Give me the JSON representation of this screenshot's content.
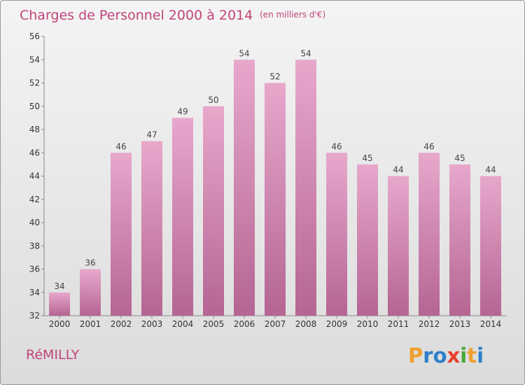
{
  "chart_data": {
    "type": "bar",
    "title": "Charges de Personnel 2000 à 2014",
    "subtitle": "(en milliers d'€)",
    "categories": [
      "2000",
      "2001",
      "2002",
      "2003",
      "2004",
      "2005",
      "2006",
      "2007",
      "2008",
      "2009",
      "2010",
      "2011",
      "2012",
      "2013",
      "2014"
    ],
    "values": [
      34,
      36,
      46,
      47,
      49,
      50,
      54,
      52,
      54,
      46,
      45,
      44,
      46,
      45,
      44
    ],
    "ylim": [
      32,
      56
    ],
    "yticks": [
      32,
      34,
      36,
      38,
      40,
      42,
      44,
      46,
      48,
      50,
      52,
      54,
      56
    ],
    "xlabel": "",
    "ylabel": "",
    "grid": false,
    "bar_color": "#d98ab6"
  },
  "footer": {
    "commune": "RéMILLY",
    "logo_letters": [
      "P",
      "r",
      "o",
      "x",
      "i",
      "t",
      "i"
    ],
    "logo_colors": [
      "#f0a030",
      "#2f7fc9",
      "#2f7fc9",
      "#e8402c",
      "#4aa83a",
      "#f0a030",
      "#2f7fc9"
    ]
  }
}
